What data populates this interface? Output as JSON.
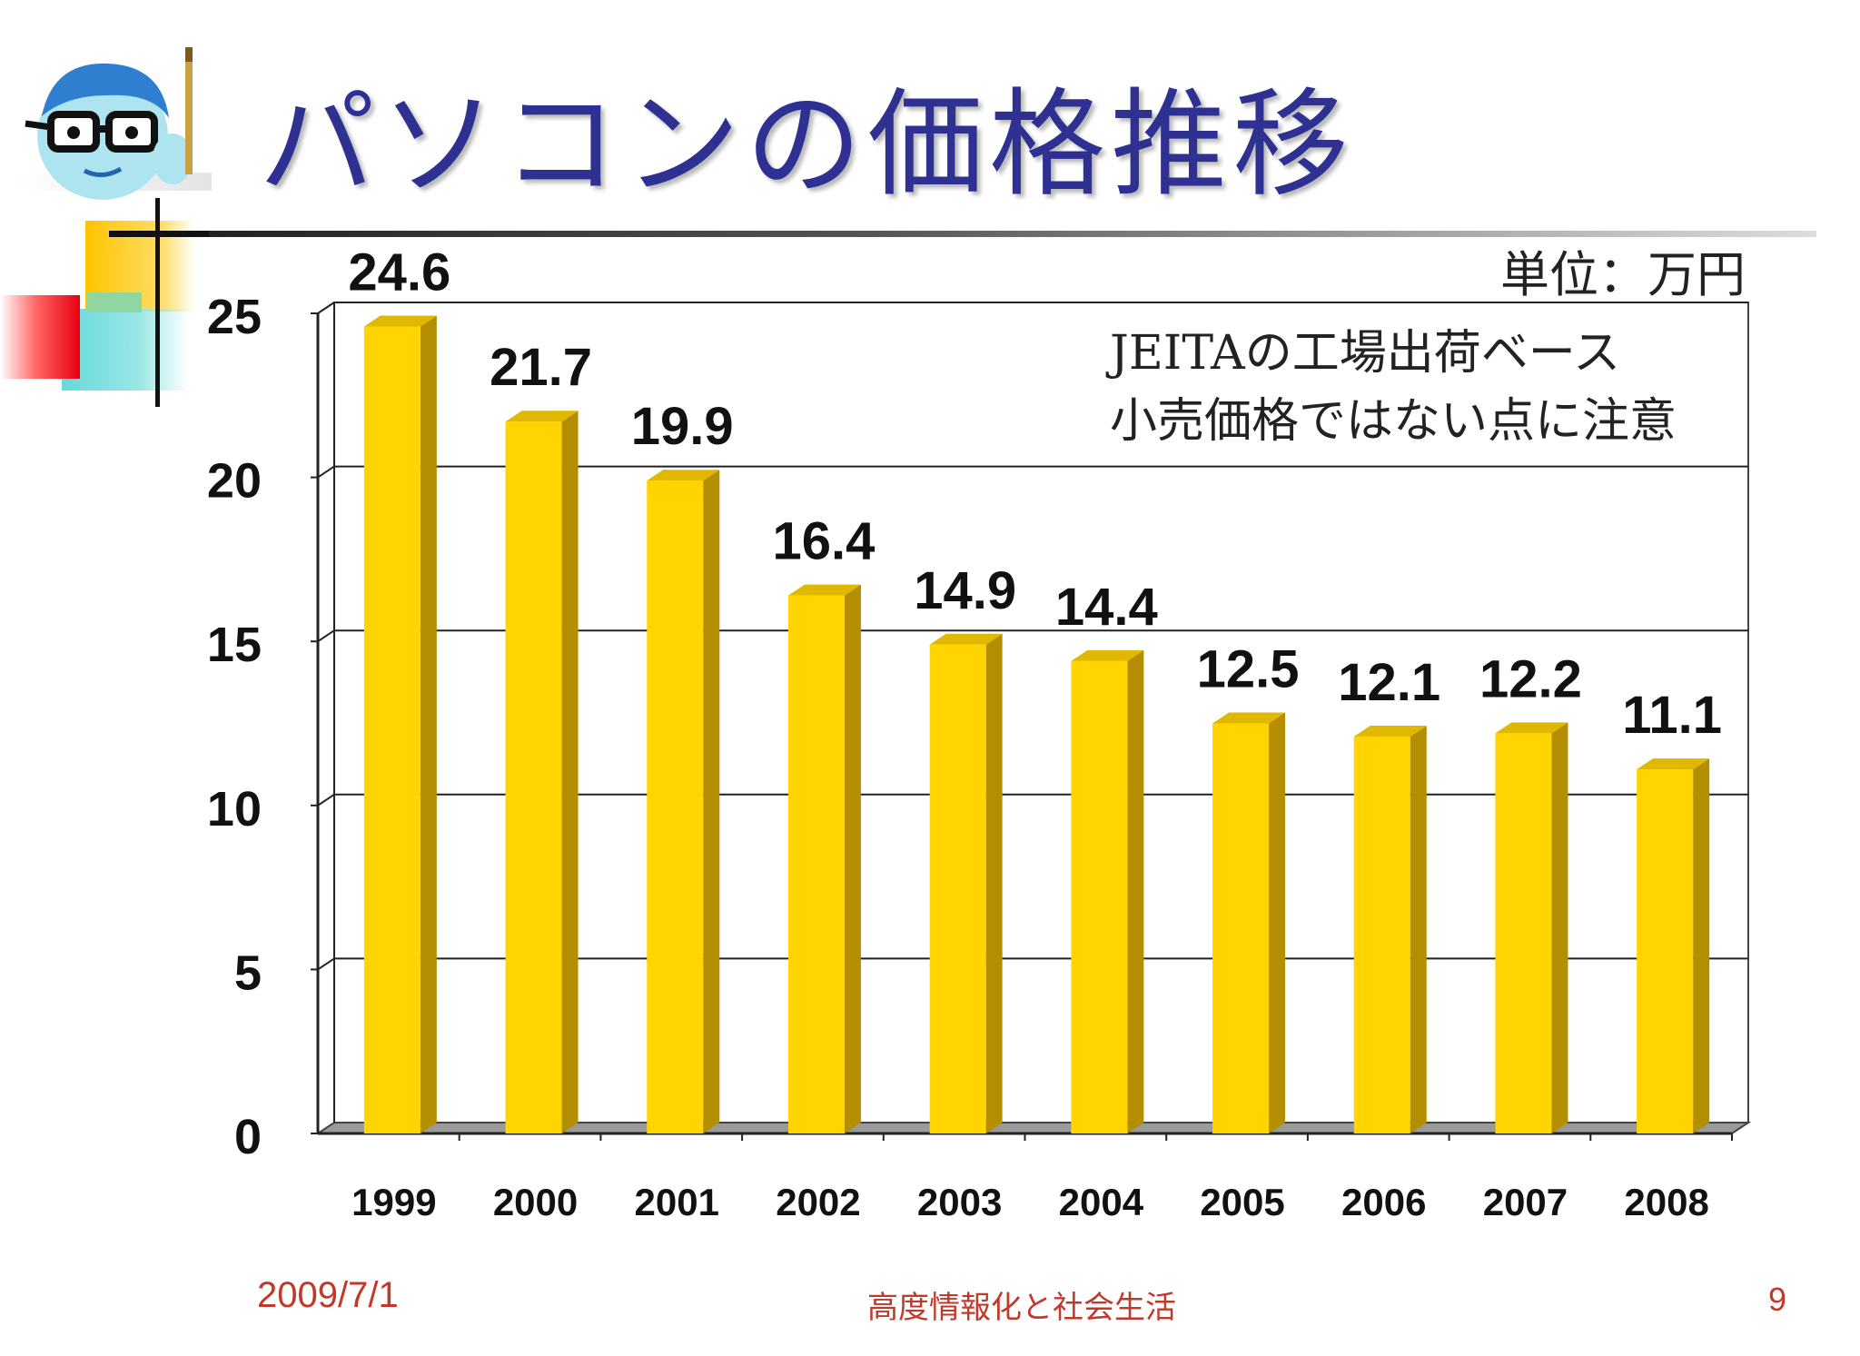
{
  "slide": {
    "title": "パソコンの価格推移",
    "unit_note": "単位：万円",
    "source_note_line1": "JEITAの工場出荷ベース",
    "source_note_line2": "小売価格ではない点に注意",
    "footer_date": "2009/7/1",
    "footer_center": "高度情報化と社会生活",
    "page_number": "9"
  },
  "colors": {
    "title": "#2e3192",
    "bar_front": "#ffd400",
    "bar_side": "#b38f00",
    "bar_top": "#e0b800",
    "footer": "#c0392b"
  },
  "chart_data": {
    "type": "bar",
    "categories": [
      "1999",
      "2000",
      "2001",
      "2002",
      "2003",
      "2004",
      "2005",
      "2006",
      "2007",
      "2008"
    ],
    "values": [
      24.6,
      21.7,
      19.9,
      16.4,
      14.9,
      14.4,
      12.5,
      12.1,
      12.2,
      11.1
    ],
    "data_labels": [
      "24.6",
      "21.7",
      "19.9",
      "16.4",
      "14.9",
      "14.4",
      "12.5",
      "12.1",
      "12.2",
      "11.1"
    ],
    "y_ticks": [
      0,
      5,
      10,
      15,
      20,
      25
    ],
    "ylim": [
      0,
      25
    ],
    "title": "",
    "xlabel": "",
    "ylabel": "",
    "grid": true,
    "style": "3d-column"
  }
}
